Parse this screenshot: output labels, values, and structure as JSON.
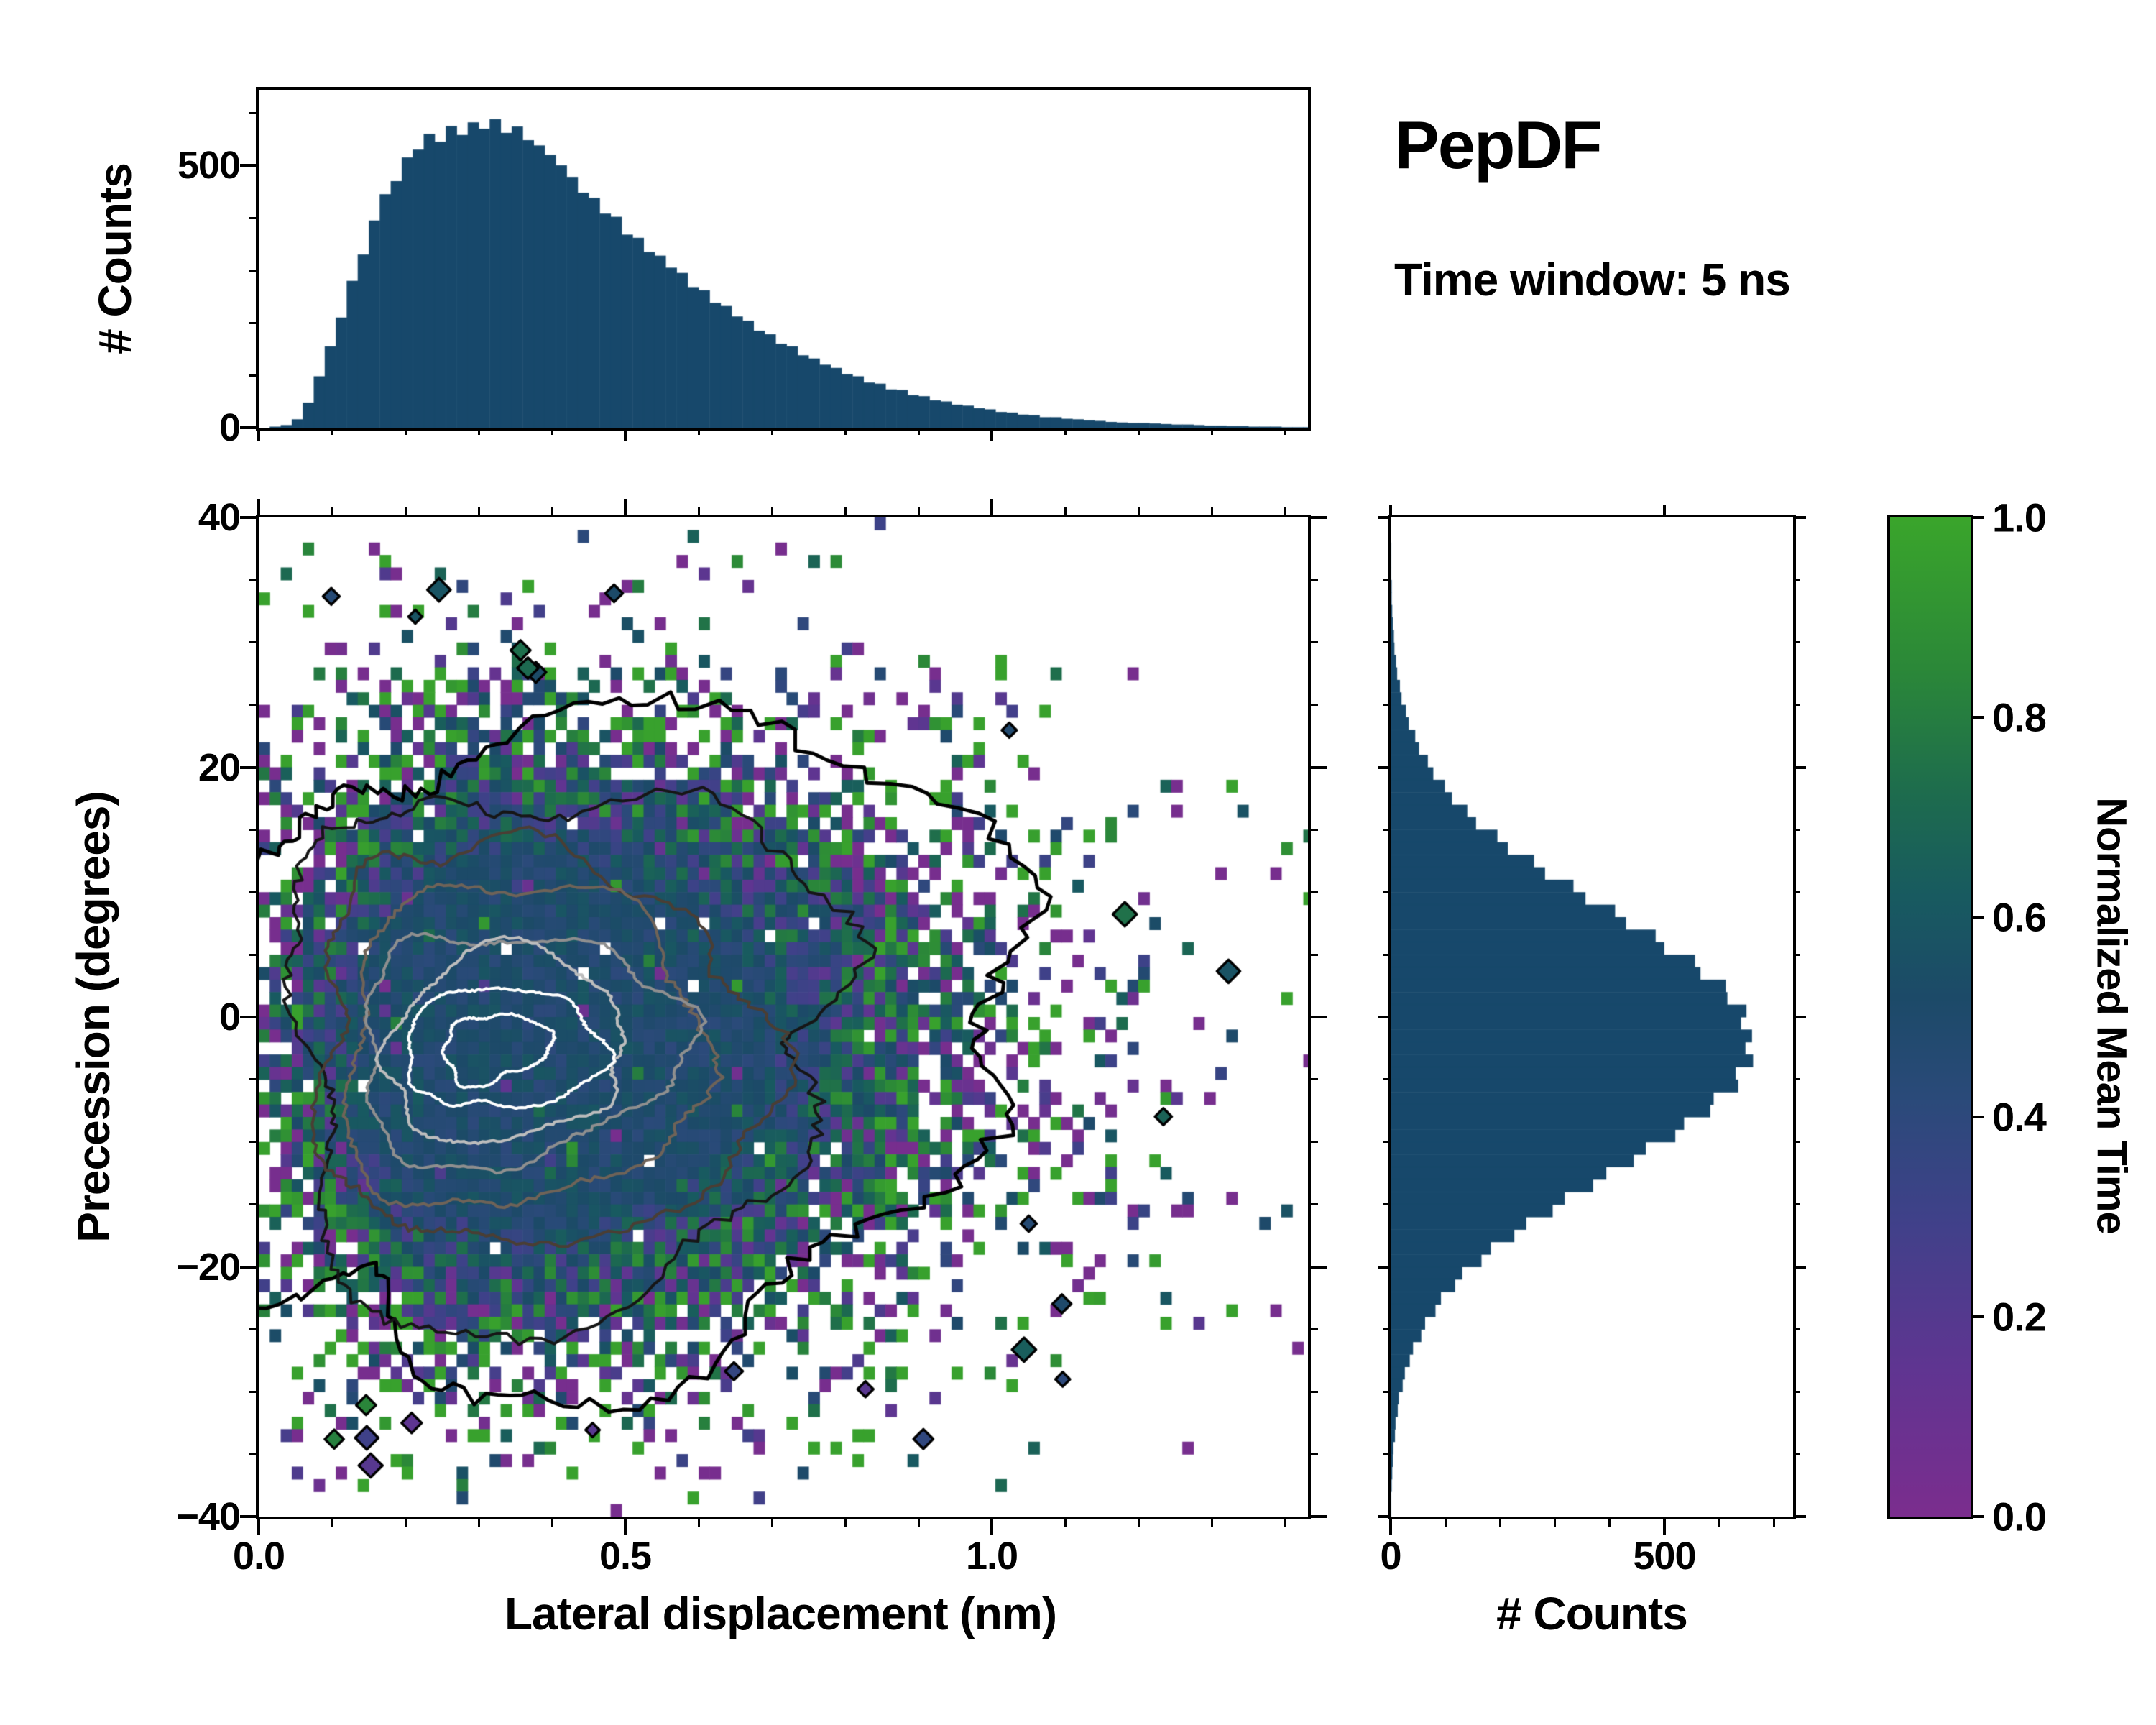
{
  "header": {
    "title": "PepDF",
    "subtitle": "Time window: 5 ns"
  },
  "axes": {
    "top_hist": {
      "ylabel": "# Counts",
      "yticks": [
        {
          "v": 0,
          "t": "0"
        },
        {
          "v": 500,
          "t": "500"
        }
      ]
    },
    "main": {
      "xlabel": "Lateral displacement (nm)",
      "ylabel": "Precession (degrees)",
      "xticks": [
        {
          "v": 0.0,
          "t": "0.0"
        },
        {
          "v": 0.5,
          "t": "0.5"
        },
        {
          "v": 1.0,
          "t": "1.0"
        }
      ],
      "yticks": [
        {
          "v": 40,
          "t": "40"
        },
        {
          "v": 20,
          "t": "20"
        },
        {
          "v": 0,
          "t": "0"
        },
        {
          "v": -20,
          "t": "−20"
        },
        {
          "v": -40,
          "t": "−40"
        }
      ]
    },
    "right_hist": {
      "xlabel": "# Counts",
      "xticks": [
        {
          "v": 0,
          "t": "0"
        },
        {
          "v": 500,
          "t": "500"
        }
      ]
    },
    "colorbar": {
      "label": "Normalized Mean Time",
      "ticks": [
        {
          "v": 0,
          "t": "0.0"
        },
        {
          "v": 0.2,
          "t": "0.2"
        },
        {
          "v": 0.4,
          "t": "0.4"
        },
        {
          "v": 0.6,
          "t": "0.6"
        },
        {
          "v": 0.8,
          "t": "0.8"
        },
        {
          "v": 1,
          "t": "1.0"
        }
      ]
    }
  },
  "colors": {
    "bar": "#17486b",
    "axis": "#000000",
    "colormap_stops": [
      [
        0.0,
        "#7b2d8e"
      ],
      [
        0.15,
        "#5f3591"
      ],
      [
        0.3,
        "#3f4189"
      ],
      [
        0.42,
        "#2a4a79"
      ],
      [
        0.52,
        "#1c4a68"
      ],
      [
        0.62,
        "#185a60"
      ],
      [
        0.72,
        "#1d6b4e"
      ],
      [
        0.85,
        "#2b8838"
      ],
      [
        1.0,
        "#3aa52b"
      ]
    ]
  },
  "chart_data": [
    {
      "type": "bar",
      "panel": "top",
      "xlabel": "Lateral displacement (nm)",
      "ylabel": "# Counts",
      "x_range": [
        0,
        1.44
      ],
      "y_range": [
        0,
        644
      ],
      "bin_width": 0.015,
      "bin_start": 0,
      "values": [
        0,
        2,
        5,
        16,
        48,
        98,
        155,
        210,
        280,
        330,
        395,
        445,
        470,
        515,
        530,
        560,
        545,
        575,
        558,
        582,
        570,
        588,
        562,
        574,
        548,
        538,
        520,
        500,
        478,
        448,
        438,
        408,
        402,
        368,
        362,
        335,
        328,
        305,
        295,
        268,
        262,
        238,
        232,
        212,
        204,
        185,
        178,
        160,
        155,
        138,
        132,
        120,
        114,
        102,
        98,
        86,
        84,
        73,
        72,
        62,
        60,
        52,
        50,
        44,
        42,
        37,
        35,
        30,
        29,
        25,
        24,
        20,
        20,
        17,
        16,
        14,
        13,
        11,
        10,
        9,
        9,
        8,
        7,
        6,
        6,
        5,
        4,
        4,
        3,
        3,
        2,
        2,
        2,
        1,
        1,
        1
      ]
    },
    {
      "type": "heatmap",
      "panel": "main",
      "xlabel": "Lateral displacement (nm)",
      "ylabel": "Precession (degrees)",
      "value_label": "Normalized Mean Time",
      "x_range": [
        0,
        1.43
      ],
      "y_range": [
        -40,
        40
      ],
      "value_range": [
        0,
        1
      ],
      "generator": {
        "seed": 20240517,
        "grid": [
          96,
          80
        ],
        "cell": [
          0.015,
          1
        ],
        "center": [
          0.32,
          -2
        ],
        "sigma_left": 0.17,
        "sigma_right": 0.36,
        "sigma_y": 14,
        "fill_gain": 3.3,
        "spread_min": 0.1,
        "spread_gain": 0.95,
        "random_speckle": 0.05,
        "outliers": 48
      },
      "contours": {
        "center": [
          0.31,
          -2.5
        ],
        "levels": [
          {
            "color": "#000000",
            "width": 5,
            "rxL": 0.34,
            "rxR": 0.74,
            "ry": 27,
            "wobble": 0.15,
            "jit": 0.06
          },
          {
            "color": "#161616",
            "width": 4,
            "rxL": 0.28,
            "rxR": 0.56,
            "ry": 19.5,
            "wobble": 0.14,
            "jit": 0.05
          },
          {
            "color": "#4a3e34",
            "width": 4,
            "rxL": 0.24,
            "rxR": 0.43,
            "ry": 15,
            "wobble": 0.12,
            "jit": 0.04
          },
          {
            "color": "#6f6358",
            "width": 4,
            "rxL": 0.205,
            "rxR": 0.34,
            "ry": 12,
            "wobble": 0.11,
            "jit": 0.035
          },
          {
            "color": "#8f8f8f",
            "width": 4,
            "rxL": 0.17,
            "rxR": 0.27,
            "ry": 9.4,
            "wobble": 0.1,
            "jit": 0.03
          },
          {
            "color": "#bdbdbd",
            "width": 4,
            "rxL": 0.135,
            "rxR": 0.21,
            "ry": 7.2,
            "wobble": 0.1,
            "jit": 0.03
          },
          {
            "color": "#ffffff",
            "width": 4,
            "rxL": 0.1,
            "rxR": 0.155,
            "ry": 5.2,
            "wobble": 0.1,
            "jit": 0.03
          },
          {
            "color": "#ffffff",
            "width": 4,
            "rxL": 0.055,
            "rxR": 0.085,
            "ry": 2.8,
            "wobble": 0.12,
            "jit": 0.04
          }
        ]
      }
    },
    {
      "type": "bar",
      "panel": "right",
      "orientation": "horizontal",
      "xlabel": "# Counts",
      "ylabel": "Precession (degrees)",
      "x_range": [
        0,
        735
      ],
      "y_range": [
        -40,
        40
      ],
      "bin_width": 1,
      "bin_start_top": 40,
      "values": [
        0,
        0,
        1,
        1,
        1,
        2,
        2,
        3,
        4,
        6,
        7,
        10,
        12,
        17,
        20,
        28,
        33,
        45,
        52,
        68,
        78,
        99,
        112,
        140,
        156,
        195,
        214,
        262,
        282,
        334,
        356,
        410,
        430,
        484,
        500,
        556,
        566,
        612,
        615,
        650,
        640,
        660,
        648,
        662,
        630,
        635,
        590,
        584,
        536,
        520,
        466,
        444,
        394,
        370,
        318,
        296,
        248,
        226,
        183,
        166,
        131,
        118,
        92,
        82,
        63,
        56,
        41,
        35,
        26,
        22,
        15,
        13,
        9,
        8,
        5,
        4,
        3,
        2,
        1,
        1
      ]
    },
    {
      "type": "colorbar",
      "label": "Normalized Mean Time",
      "range": [
        0,
        1
      ],
      "tick_values": [
        0.0,
        0.2,
        0.4,
        0.6,
        0.8,
        1.0
      ]
    }
  ]
}
